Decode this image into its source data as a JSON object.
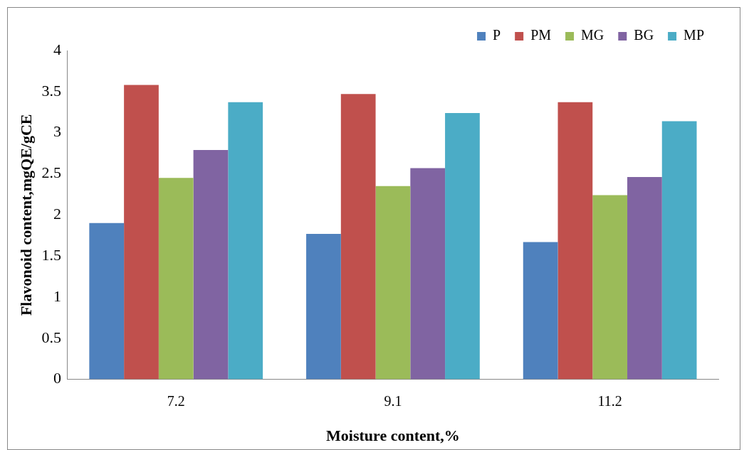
{
  "chart_data": {
    "type": "bar",
    "xlabel": "Moisture content,%",
    "ylabel": "Flavonoid content,mgQE/gCE",
    "categories": [
      "7.2",
      "9.1",
      "11.2"
    ],
    "series": [
      {
        "name": "P",
        "color": "#4f81bd",
        "values": [
          1.9,
          1.77,
          1.67
        ]
      },
      {
        "name": "PM",
        "color": "#c0504d",
        "values": [
          3.58,
          3.47,
          3.37
        ]
      },
      {
        "name": "MG",
        "color": "#9bbb59",
        "values": [
          2.45,
          2.35,
          2.24
        ]
      },
      {
        "name": "BG",
        "color": "#8064a2",
        "values": [
          2.79,
          2.57,
          2.46
        ]
      },
      {
        "name": "MP",
        "color": "#4bacc6",
        "values": [
          3.37,
          3.24,
          3.14
        ]
      }
    ],
    "ylim": [
      0,
      4
    ],
    "yticks": [
      0,
      0.5,
      1,
      1.5,
      2,
      2.5,
      3,
      3.5,
      4
    ],
    "grid": false,
    "legend": "top right"
  }
}
